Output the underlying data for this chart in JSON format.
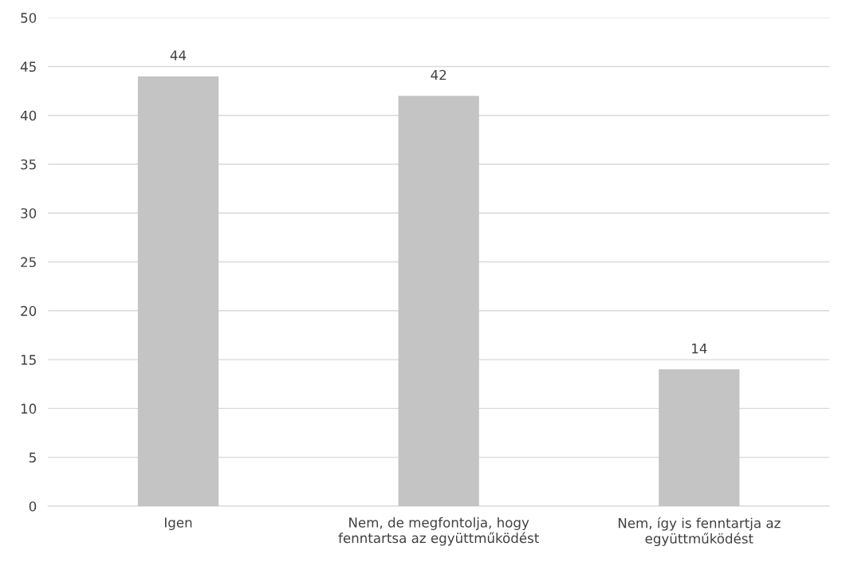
{
  "chart_data": {
    "type": "bar",
    "categories": [
      "Igen",
      "Nem, de megfontolja, hogy\nfenntartsa az együttműködést",
      "Nem, így is fenntartja az\negyüttműködést"
    ],
    "values": [
      44,
      42,
      14
    ],
    "color": "#c4c4c4",
    "ylim": [
      0,
      50
    ],
    "yticks": [
      0,
      5,
      10,
      15,
      20,
      25,
      30,
      35,
      40,
      45,
      50
    ],
    "grid": "y",
    "data_labels": true
  }
}
